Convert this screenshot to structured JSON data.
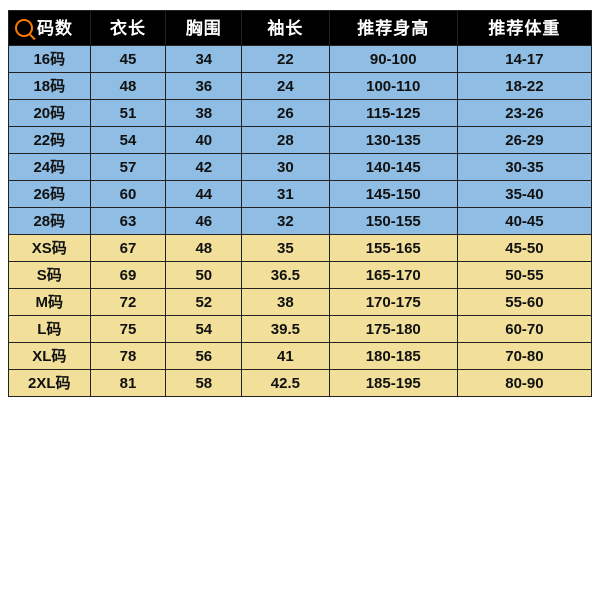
{
  "table": {
    "type": "table",
    "header_bg": "#000000",
    "header_fg": "#ffffff",
    "border_color": "#222222",
    "row_group_colors": {
      "kids": "#8fbde3",
      "adult": "#f2e09a"
    },
    "font_family": "Microsoft YaHei",
    "header_fontsize": 17,
    "body_fontsize": 15,
    "columns": [
      {
        "key": "size",
        "label": "码数",
        "width_pct": 14
      },
      {
        "key": "length",
        "label": "衣长",
        "width_pct": 13
      },
      {
        "key": "chest",
        "label": "胸围",
        "width_pct": 13
      },
      {
        "key": "sleeve",
        "label": "袖长",
        "width_pct": 15
      },
      {
        "key": "height",
        "label": "推荐身高",
        "width_pct": 22
      },
      {
        "key": "weight",
        "label": "推荐体重",
        "width_pct": 23
      }
    ],
    "rows": [
      {
        "group": "kids",
        "size": "16码",
        "length": "45",
        "chest": "34",
        "sleeve": "22",
        "height": "90-100",
        "weight": "14-17"
      },
      {
        "group": "kids",
        "size": "18码",
        "length": "48",
        "chest": "36",
        "sleeve": "24",
        "height": "100-110",
        "weight": "18-22"
      },
      {
        "group": "kids",
        "size": "20码",
        "length": "51",
        "chest": "38",
        "sleeve": "26",
        "height": "115-125",
        "weight": "23-26"
      },
      {
        "group": "kids",
        "size": "22码",
        "length": "54",
        "chest": "40",
        "sleeve": "28",
        "height": "130-135",
        "weight": "26-29"
      },
      {
        "group": "kids",
        "size": "24码",
        "length": "57",
        "chest": "42",
        "sleeve": "30",
        "height": "140-145",
        "weight": "30-35"
      },
      {
        "group": "kids",
        "size": "26码",
        "length": "60",
        "chest": "44",
        "sleeve": "31",
        "height": "145-150",
        "weight": "35-40"
      },
      {
        "group": "kids",
        "size": "28码",
        "length": "63",
        "chest": "46",
        "sleeve": "32",
        "height": "150-155",
        "weight": "40-45"
      },
      {
        "group": "adult",
        "size": "XS码",
        "length": "67",
        "chest": "48",
        "sleeve": "35",
        "height": "155-165",
        "weight": "45-50"
      },
      {
        "group": "adult",
        "size": "S码",
        "length": "69",
        "chest": "50",
        "sleeve": "36.5",
        "height": "165-170",
        "weight": "50-55"
      },
      {
        "group": "adult",
        "size": "M码",
        "length": "72",
        "chest": "52",
        "sleeve": "38",
        "height": "170-175",
        "weight": "55-60"
      },
      {
        "group": "adult",
        "size": "L码",
        "length": "75",
        "chest": "54",
        "sleeve": "39.5",
        "height": "175-180",
        "weight": "60-70"
      },
      {
        "group": "adult",
        "size": "XL码",
        "length": "78",
        "chest": "56",
        "sleeve": "41",
        "height": "180-185",
        "weight": "70-80"
      },
      {
        "group": "adult",
        "size": "2XL码",
        "length": "81",
        "chest": "58",
        "sleeve": "42.5",
        "height": "185-195",
        "weight": "80-90"
      }
    ]
  }
}
